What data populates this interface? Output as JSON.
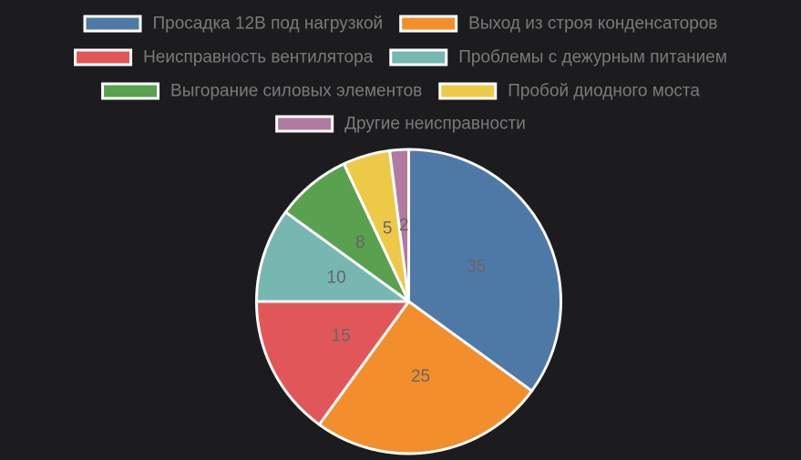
{
  "chart_data": {
    "type": "pie",
    "categories": [
      "Просадка  12В под нагрузкой",
      "Выход из строя конденсаторов",
      "Неисправность вентилятора",
      "Проблемы с дежурным питанием",
      "Выгорание силовых элементов",
      "Пробой диодного моста",
      "Другие неисправности"
    ],
    "values": [
      35,
      25,
      15,
      10,
      8,
      5,
      2
    ],
    "colors": [
      "#4e79a7",
      "#f28e2b",
      "#e15759",
      "#76b7b2",
      "#59a14f",
      "#edc948",
      "#b07aa1"
    ],
    "title": "",
    "legend_position": "top",
    "data_labels": true
  },
  "theme": {
    "background": "#1c1c1e",
    "legend_text_color": "#7a7a7a",
    "data_label_color": "#666666",
    "slice_border_color": "#ffffff"
  }
}
